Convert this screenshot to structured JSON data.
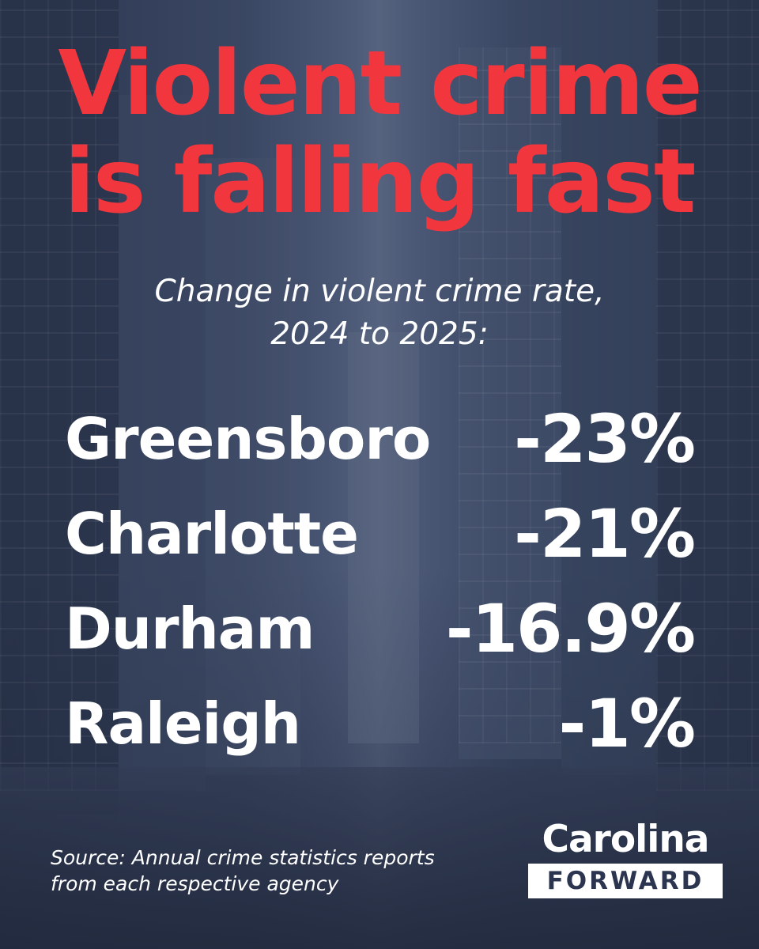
{
  "headline": {
    "line1": "Violent crime",
    "line2": "is falling fast"
  },
  "subtitle": {
    "line1": "Change in violent crime rate,",
    "line2": "2024 to 2025:"
  },
  "rows": [
    {
      "city": "Greensboro",
      "value": "-23%"
    },
    {
      "city": "Charlotte",
      "value": "-21%"
    },
    {
      "city": "Durham",
      "value": "-16.9%"
    },
    {
      "city": "Raleigh",
      "value": "-1%"
    }
  ],
  "source": {
    "line1": "Source: Annual crime statistics reports",
    "line2": "from each respective agency"
  },
  "logo": {
    "top": "Carolina",
    "bottom": "FORWARD"
  },
  "colors": {
    "headline": "#f2363d",
    "background": "#2f3b55",
    "text": "#ffffff"
  }
}
